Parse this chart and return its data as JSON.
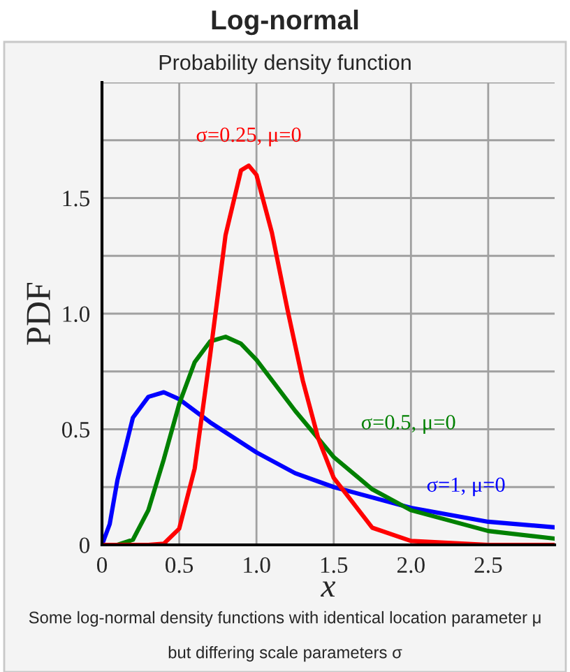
{
  "chart_data": {
    "type": "line",
    "title": "Log-normal",
    "subtitle": "Probability density function",
    "xlabel": "x",
    "ylabel": "PDF",
    "annotations": [
      "Some log-normal density functions with identical location parameter μ",
      "but differing scale parameters σ"
    ],
    "series": [
      {
        "name": "σ=1, μ=0",
        "color": "#0000ff",
        "x": [
          0,
          0.05,
          0.1,
          0.2,
          0.3,
          0.4,
          0.5,
          0.7,
          1.0,
          1.25,
          1.5,
          2.0,
          2.5,
          2.93
        ],
        "values": [
          0,
          0.09,
          0.28,
          0.55,
          0.64,
          0.66,
          0.63,
          0.53,
          0.4,
          0.31,
          0.25,
          0.16,
          0.1,
          0.076
        ]
      },
      {
        "name": "σ=0.5, μ=0",
        "color": "#008000",
        "x": [
          0,
          0.1,
          0.2,
          0.3,
          0.4,
          0.5,
          0.6,
          0.7,
          0.8,
          0.9,
          1.0,
          1.25,
          1.5,
          1.75,
          2.0,
          2.5,
          2.93
        ],
        "values": [
          0,
          0,
          0.022,
          0.15,
          0.37,
          0.61,
          0.79,
          0.88,
          0.9,
          0.87,
          0.8,
          0.58,
          0.38,
          0.24,
          0.15,
          0.06,
          0.027
        ]
      },
      {
        "name": "σ=0.25, μ=0",
        "color": "#ff0000",
        "x": [
          0,
          0.3,
          0.4,
          0.5,
          0.6,
          0.7,
          0.8,
          0.9,
          0.95,
          1.0,
          1.1,
          1.2,
          1.3,
          1.4,
          1.5,
          1.75,
          2.0,
          2.5,
          2.93
        ],
        "values": [
          0,
          0,
          0.005,
          0.07,
          0.33,
          0.82,
          1.34,
          1.62,
          1.64,
          1.6,
          1.35,
          1.02,
          0.71,
          0.46,
          0.29,
          0.074,
          0.017,
          0,
          0
        ]
      }
    ],
    "xlim": [
      0,
      2.93
    ],
    "ylim": [
      0,
      2
    ],
    "xticks": [
      {
        "value": 0,
        "label": "0"
      },
      0.5,
      {
        "value": 1,
        "label": "1.0"
      },
      1.5,
      {
        "value": 2,
        "label": "2.0"
      },
      2.5
    ],
    "yticks": [
      {
        "value": 0,
        "label": "0"
      },
      {
        "value": 0.25,
        "label": null
      },
      0.5,
      {
        "value": 0.75,
        "label": null
      },
      {
        "value": 1,
        "label": "1.0"
      },
      {
        "value": 1.25,
        "label": null
      },
      1.5,
      {
        "value": 1.75,
        "label": null
      },
      {
        "value": 2,
        "label": null
      }
    ],
    "grid": true,
    "legend": false,
    "marker": "none",
    "line_style": "solid"
  }
}
